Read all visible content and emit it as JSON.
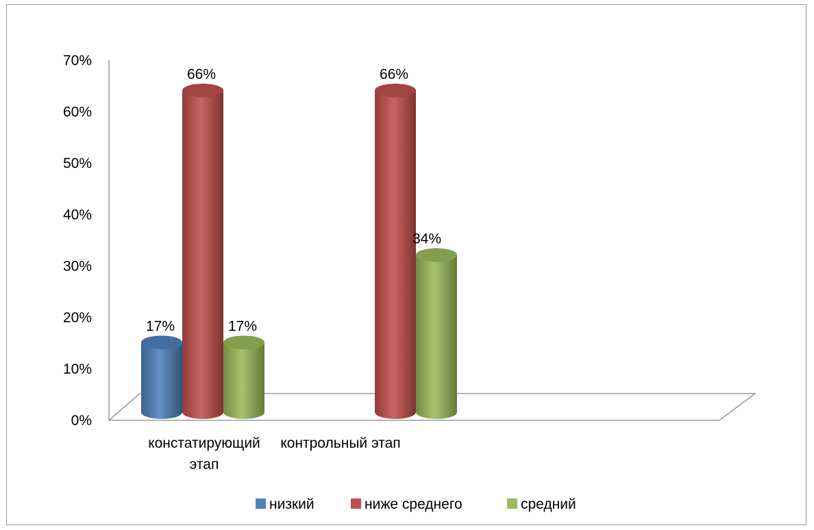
{
  "chart_data": {
    "type": "bar",
    "style": "3d-cylinder",
    "categories": [
      "констатирующий этап",
      "контрольный этап"
    ],
    "series": [
      {
        "name": "низкий",
        "values": [
          17,
          null
        ],
        "labels": [
          "17%",
          ""
        ]
      },
      {
        "name": "ниже среднего",
        "values": [
          66,
          66
        ],
        "labels": [
          "66%",
          "66%"
        ]
      },
      {
        "name": "средний",
        "values": [
          17,
          34
        ],
        "labels": [
          "17%",
          "34%"
        ]
      }
    ],
    "ylim": [
      0,
      70
    ],
    "yticks": [
      0,
      10,
      20,
      30,
      40,
      50,
      60,
      70
    ],
    "ytick_labels": [
      "0%",
      "10%",
      "20%",
      "30%",
      "40%",
      "50%",
      "60%",
      "70%"
    ],
    "legend_position": "bottom",
    "grid": false,
    "colors": {
      "низкий": "#4f81bd",
      "ниже среднего": "#c0504d",
      "средний": "#9bbb59"
    }
  }
}
